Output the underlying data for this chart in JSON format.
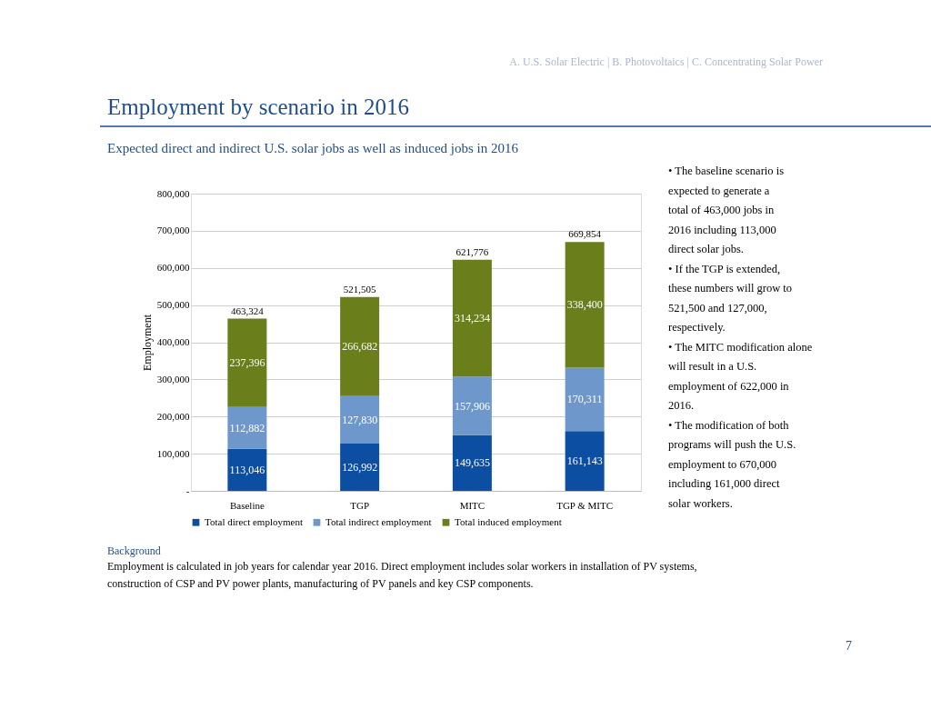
{
  "chart_data": {
    "type": "bar",
    "title": "Employment by scenario in 2016",
    "subtitle": "Expected direct and indirect U.S. solar jobs as well as induced jobs in 2016",
    "ylabel": "Employment",
    "categories": [
      "Baseline",
      "TGP",
      "MITC",
      "TGP & MITC"
    ],
    "series": [
      {
        "name": "Total direct employment",
        "color": "#0b4ea2",
        "values": [
          113046,
          126992,
          149635,
          161143
        ],
        "value_labels": [
          "113,046",
          "126,992",
          "149,635",
          "161,143"
        ]
      },
      {
        "name": "Total indirect employment",
        "color": "#6e98cc",
        "values": [
          112882,
          127830,
          157906,
          170311
        ],
        "value_labels": [
          "112,882",
          "127,830",
          "157,906",
          "170,311"
        ]
      },
      {
        "name": "Total induced employment",
        "color": "#6b7e1c",
        "values": [
          237396,
          266682,
          314234,
          338400
        ],
        "value_labels": [
          "237,396",
          "266,682",
          "314,234",
          "338,400"
        ]
      }
    ],
    "stacked": true,
    "totals": [
      "463,324",
      "521,505",
      "621,776",
      "669,854"
    ],
    "ylim": [
      0,
      800000
    ],
    "yticks": [
      {
        "value": 0,
        "label": "-"
      },
      {
        "value": 100000,
        "label": "100,000"
      },
      {
        "value": 200000,
        "label": "200,000"
      },
      {
        "value": 300000,
        "label": "300,000"
      },
      {
        "value": 400000,
        "label": "400,000"
      },
      {
        "value": 500000,
        "label": "500,000"
      },
      {
        "value": 600000,
        "label": "600,000"
      },
      {
        "value": 700000,
        "label": "700,000"
      },
      {
        "value": 800000,
        "label": "800,000"
      }
    ],
    "grid": "y",
    "legend": "bottom",
    "annotations": [
      "A. U.S. Solar Electric | B. Photovoltaics | C. Concentrating Solar Power",
      "• The baseline scenario is expected to generate a total of  463,000 jobs in 2016 including 113,000 direct solar jobs.",
      "• If the TGP is extended, these numbers will grow to 521,500 and 127,000, respectively.",
      "• The MITC modification alone will result in a U.S. employment of 622,000 in 2016.",
      "• The modification of both programs will push the U.S. employment to 670,000 including 161,000 direct solar workers.",
      "Background",
      "Employment is calculated in job years for calendar year 2016. Direct employment includes solar workers in installation of PV systems, construction of CSP and PV power plants, manufacturing of PV panels and key CSP components.",
      "7"
    ]
  }
}
